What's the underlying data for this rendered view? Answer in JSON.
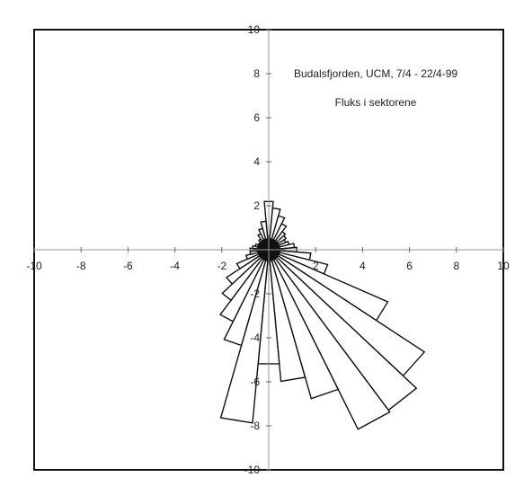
{
  "chart_data": {
    "type": "polar-bar",
    "title": "Budalsfjorden, UCM, 7/4 - 22/4-99",
    "subtitle": "Fluks i sektorene",
    "xlim": [
      -10,
      10
    ],
    "ylim": [
      -10,
      10
    ],
    "x_ticks": [
      -10,
      -8,
      -6,
      -4,
      -2,
      2,
      4,
      6,
      8,
      10
    ],
    "y_ticks": [
      -10,
      -8,
      -6,
      -4,
      -2,
      2,
      4,
      6,
      8,
      10
    ],
    "x_tick_labels": [
      "-10",
      "-8",
      "-6",
      "-4",
      "-2",
      "2",
      "4",
      "6",
      "8",
      "10"
    ],
    "y_tick_labels": [
      "-10",
      "-8",
      "-6",
      "-4",
      "-2",
      "2",
      "4",
      "6",
      "8",
      "10"
    ],
    "grid": false,
    "sector_width_deg": 10,
    "sectors": [
      {
        "direction_deg": 0,
        "value": 2.2
      },
      {
        "direction_deg": 10,
        "value": 1.9
      },
      {
        "direction_deg": 20,
        "value": 1.6
      },
      {
        "direction_deg": 30,
        "value": 1.3
      },
      {
        "direction_deg": 40,
        "value": 1.0
      },
      {
        "direction_deg": 50,
        "value": 0.9
      },
      {
        "direction_deg": 60,
        "value": 0.8
      },
      {
        "direction_deg": 70,
        "value": 0.9
      },
      {
        "direction_deg": 80,
        "value": 1.1
      },
      {
        "direction_deg": 90,
        "value": 1.2
      },
      {
        "direction_deg": 100,
        "value": 1.8
      },
      {
        "direction_deg": 110,
        "value": 2.6
      },
      {
        "direction_deg": 120,
        "value": 5.6
      },
      {
        "direction_deg": 130,
        "value": 8.1
      },
      {
        "direction_deg": 140,
        "value": 8.9
      },
      {
        "direction_deg": 150,
        "value": 9.0
      },
      {
        "direction_deg": 160,
        "value": 7.0
      },
      {
        "direction_deg": 170,
        "value": 6.0
      },
      {
        "direction_deg": 180,
        "value": 5.2
      },
      {
        "direction_deg": 190,
        "value": 7.9
      },
      {
        "direction_deg": 200,
        "value": 4.5
      },
      {
        "direction_deg": 210,
        "value": 3.6
      },
      {
        "direction_deg": 220,
        "value": 2.8
      },
      {
        "direction_deg": 230,
        "value": 2.2
      },
      {
        "direction_deg": 240,
        "value": 1.5
      },
      {
        "direction_deg": 250,
        "value": 1.0
      },
      {
        "direction_deg": 260,
        "value": 0.8
      },
      {
        "direction_deg": 270,
        "value": 0.8
      },
      {
        "direction_deg": 280,
        "value": 0.7
      },
      {
        "direction_deg": 290,
        "value": 0.6
      },
      {
        "direction_deg": 300,
        "value": 0.5
      },
      {
        "direction_deg": 310,
        "value": 0.5
      },
      {
        "direction_deg": 320,
        "value": 0.6
      },
      {
        "direction_deg": 330,
        "value": 0.8
      },
      {
        "direction_deg": 340,
        "value": 1.0
      },
      {
        "direction_deg": 350,
        "value": 1.3
      }
    ]
  }
}
